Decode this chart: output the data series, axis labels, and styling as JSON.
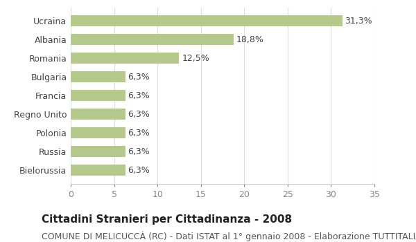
{
  "categories": [
    "Ucraina",
    "Albania",
    "Romania",
    "Bulgaria",
    "Francia",
    "Regno Unito",
    "Polonia",
    "Russia",
    "Bielorussia"
  ],
  "values": [
    31.3,
    18.8,
    12.5,
    6.3,
    6.3,
    6.3,
    6.3,
    6.3,
    6.3
  ],
  "labels": [
    "31,3%",
    "18,8%",
    "12,5%",
    "6,3%",
    "6,3%",
    "6,3%",
    "6,3%",
    "6,3%",
    "6,3%"
  ],
  "bar_color": "#b5c98a",
  "background_color": "#ffffff",
  "title": "Cittadini Stranieri per Cittadinanza - 2008",
  "subtitle": "COMUNE DI MELICUCCÀ (RC) - Dati ISTAT al 1° gennaio 2008 - Elaborazione TUTTITALIA.IT",
  "xlim": [
    0,
    35
  ],
  "xticks": [
    0,
    5,
    10,
    15,
    20,
    25,
    30,
    35
  ],
  "title_fontsize": 11,
  "subtitle_fontsize": 9,
  "label_fontsize": 9,
  "tick_fontsize": 9,
  "bar_height": 0.6
}
